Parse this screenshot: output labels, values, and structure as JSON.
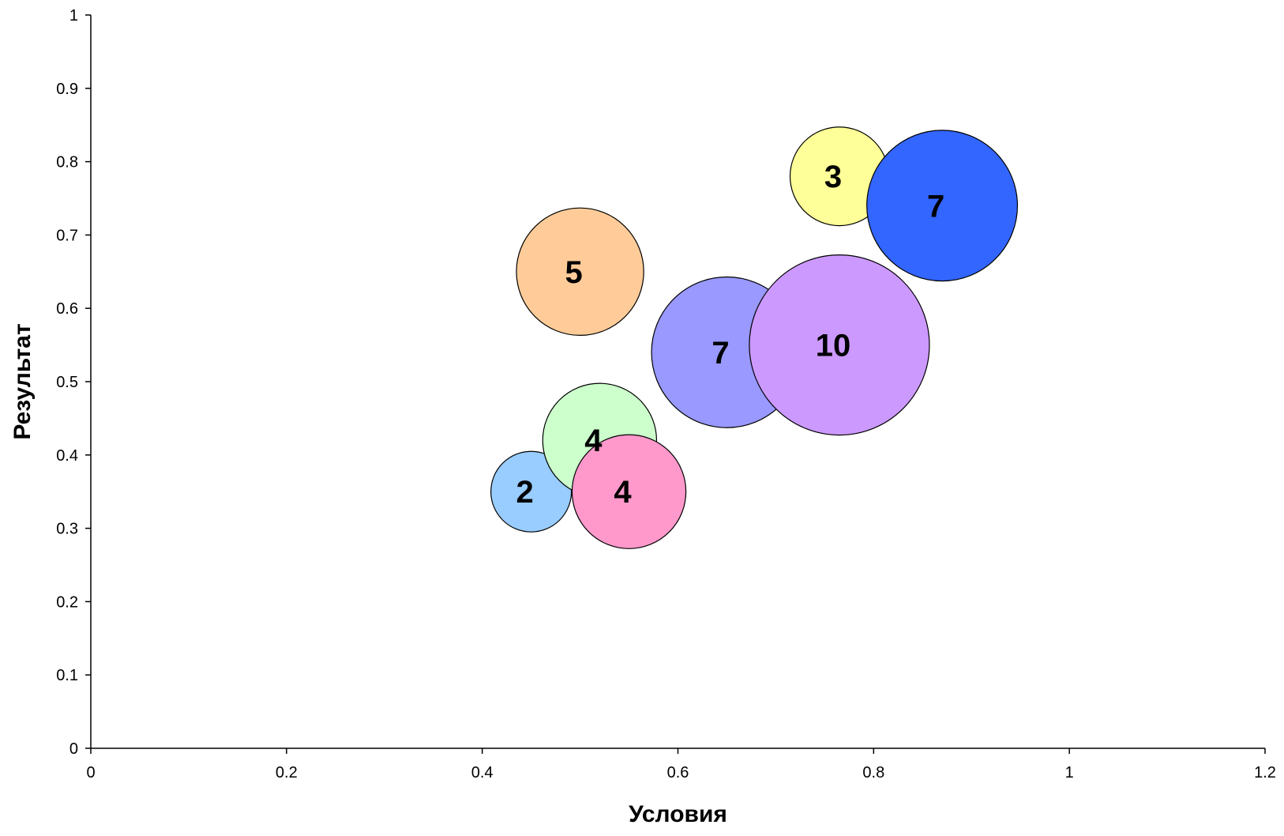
{
  "chart_data": {
    "type": "scatter",
    "subtype": "bubble",
    "title": "",
    "xlabel": "Условия",
    "ylabel": "Результат",
    "xlim": [
      0,
      1.2
    ],
    "ylim": [
      0,
      1
    ],
    "x_ticks": [
      0,
      0.2,
      0.4,
      0.6,
      0.8,
      1,
      1.2
    ],
    "y_ticks": [
      0,
      0.1,
      0.2,
      0.3,
      0.4,
      0.5,
      0.6,
      0.7,
      0.8,
      0.9,
      1
    ],
    "x_tick_labels": [
      "0",
      "0.2",
      "0.4",
      "0.6",
      "0.8",
      "1",
      "1.2"
    ],
    "y_tick_labels": [
      "0",
      "0.1",
      "0.2",
      "0.3",
      "0.4",
      "0.5",
      "0.6",
      "0.7",
      "0.8",
      "0.9",
      "1"
    ],
    "grid": false,
    "legend": "none",
    "points": [
      {
        "x": 0.45,
        "y": 0.35,
        "size": 2,
        "label": "2",
        "color": "#99ccff"
      },
      {
        "x": 0.52,
        "y": 0.42,
        "size": 4,
        "label": "4",
        "color": "#ccffcc"
      },
      {
        "x": 0.55,
        "y": 0.35,
        "size": 4,
        "label": "4",
        "color": "#ff99cc"
      },
      {
        "x": 0.5,
        "y": 0.65,
        "size": 5,
        "label": "5",
        "color": "#ffcc99"
      },
      {
        "x": 0.65,
        "y": 0.54,
        "size": 7,
        "label": "7",
        "color": "#9999ff"
      },
      {
        "x": 0.765,
        "y": 0.55,
        "size": 10,
        "label": "10",
        "color": "#cc99ff"
      },
      {
        "x": 0.765,
        "y": 0.78,
        "size": 3,
        "label": "3",
        "color": "#ffff99"
      },
      {
        "x": 0.87,
        "y": 0.74,
        "size": 7,
        "label": "7",
        "color": "#3366ff"
      }
    ]
  }
}
